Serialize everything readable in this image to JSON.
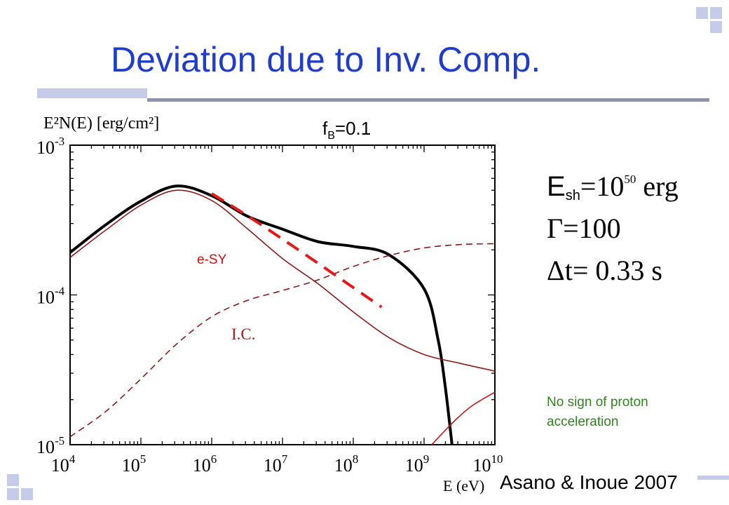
{
  "slide": {
    "title": "Deviation due to Inv. Comp.",
    "citation": "Asano & Inoue 2007",
    "note_line1": "No sign of proton",
    "note_line2": "acceleration",
    "params_label": "f",
    "params_sub": "B",
    "params_value": "=0.1",
    "equations": {
      "e1_symbol": "E",
      "e1_sub": "sh",
      "e1_rhs_pre": "=10",
      "e1_sup": "50",
      "e1_unit": " erg",
      "e2_symbol": "Γ",
      "e2_rhs": "=100",
      "e3_symbol": "Δt",
      "e3_rhs": "= 0.33 s"
    },
    "colors": {
      "title": "#1f3ccc",
      "note": "#338020",
      "accent": "#c5cbe8",
      "rule": "#8c93ad"
    }
  },
  "chart_data": {
    "type": "line",
    "xscale": "log",
    "yscale": "log",
    "xlim": [
      10000,
      10000000000
    ],
    "ylim": [
      1e-05,
      0.001
    ],
    "ylabel": "E²N(E) [erg/cm²]",
    "xlabel": "E (eV)",
    "x_tick_labels": [
      {
        "base": "10",
        "exp": "4"
      },
      {
        "base": "10",
        "exp": "5"
      },
      {
        "base": "10",
        "exp": "6"
      },
      {
        "base": "10",
        "exp": "7"
      },
      {
        "base": "10",
        "exp": "8"
      },
      {
        "base": "10",
        "exp": "9"
      },
      {
        "base": "10",
        "exp": "10"
      }
    ],
    "y_tick_labels": [
      {
        "base": "10",
        "exp": "-5"
      },
      {
        "base": "10",
        "exp": "-4"
      },
      {
        "base": "10",
        "exp": "-3"
      }
    ],
    "annotations": {
      "esy": "e-SY",
      "ic": "I.C."
    },
    "series": [
      {
        "style": "total",
        "color": "#000000",
        "x": [
          10000,
          31600,
          100000,
          316000,
          1000000,
          3160000,
          10000000,
          31600000,
          100000000,
          316000000,
          1000000000,
          1580000000,
          2000000000,
          2510000000
        ],
        "y": [
          0.000192,
          0.000293,
          0.000423,
          0.000534,
          0.00046,
          0.000336,
          0.000275,
          0.000227,
          0.000211,
          0.000186,
          0.00011,
          5e-05,
          2.4e-05,
          9.5e-06
        ]
      },
      {
        "style": "thin",
        "color": "#8b1a1a",
        "x": [
          10000,
          31600,
          100000,
          316000,
          1000000,
          3160000,
          10000000,
          31600000,
          100000000,
          316000000,
          1000000000,
          3160000000,
          10000000000
        ],
        "y": [
          0.000178,
          0.00027,
          0.000398,
          0.0005,
          0.000427,
          0.000278,
          0.000175,
          0.000119,
          7.7e-05,
          5.2e-05,
          4e-05,
          3.5e-05,
          3.1e-05
        ]
      },
      {
        "style": "dashed",
        "color": "#8b1a1a",
        "x": [
          10000,
          31600,
          100000,
          316000,
          1000000,
          3160000,
          10000000,
          31600000,
          100000000,
          316000000,
          1000000000,
          3160000000,
          10000000000
        ],
        "y": [
          1.13e-05,
          1.66e-05,
          2.75e-05,
          4.68e-05,
          7.15e-05,
          9.17e-05,
          0.000107,
          0.000126,
          0.000155,
          0.000183,
          0.000206,
          0.000217,
          0.00022
        ]
      },
      {
        "style": "thin",
        "color": "#cc1111",
        "x": [
          1260000000,
          2000000000,
          3160000000,
          5010000000,
          10000000000
        ],
        "y": [
          9.9e-06,
          1.25e-05,
          1.55e-05,
          1.85e-05,
          2.24e-05
        ]
      },
      {
        "style": "guide",
        "color": "#e41a1a",
        "x": [
          1000000,
          3160000,
          10000000,
          31600000,
          100000000,
          251000000
        ],
        "y": [
          0.000475,
          0.000339,
          0.000236,
          0.000163,
          0.000112,
          8.3e-05
        ]
      }
    ]
  }
}
